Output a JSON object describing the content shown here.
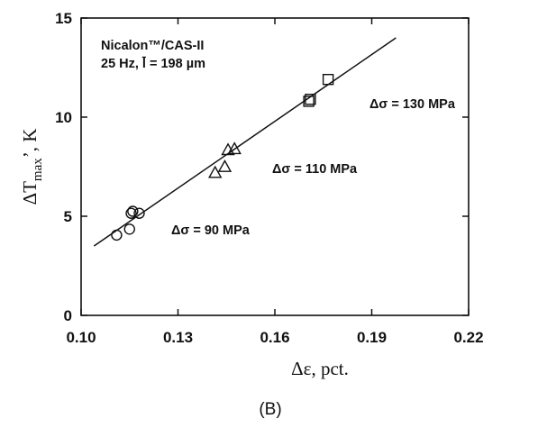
{
  "chart_data": {
    "type": "scatter",
    "info_lines": [
      "Nicalon™/CAS-II",
      "25 Hz, l̄ = 198 µm"
    ],
    "xlabel": "Δε, pct.",
    "ylabel_main": "ΔT",
    "ylabel_sub": "max",
    "ylabel_tail": "’, K",
    "caption": "(B)",
    "xlim": [
      0.1,
      0.22
    ],
    "ylim": [
      0,
      15
    ],
    "x_ticks": [
      0.1,
      0.13,
      0.16,
      0.19,
      0.22
    ],
    "x_tick_labels": [
      "0.10",
      "0.13",
      "0.16",
      "0.19",
      "0.22"
    ],
    "y_ticks": [
      0,
      5,
      10,
      15
    ],
    "y_tick_labels": [
      "0",
      "5",
      "10",
      "15"
    ],
    "series": [
      {
        "marker": "circle",
        "label": "Δσ = 90 MPa",
        "x": [
          0.111,
          0.115,
          0.1155,
          0.116,
          0.118
        ],
        "y": [
          4.05,
          4.35,
          5.15,
          5.25,
          5.15
        ]
      },
      {
        "marker": "triangle",
        "label": "Δσ = 110 MPa",
        "x": [
          0.1415,
          0.1445,
          0.1455,
          0.1475
        ],
        "y": [
          7.2,
          7.5,
          8.35,
          8.4
        ]
      },
      {
        "marker": "square",
        "label": "Δσ = 130 MPa",
        "x": [
          0.1705,
          0.171,
          0.1765
        ],
        "y": [
          10.8,
          10.9,
          11.9
        ]
      }
    ],
    "fit_line": {
      "x": [
        0.104,
        0.1975
      ],
      "y": [
        3.5,
        14.0
      ]
    }
  }
}
